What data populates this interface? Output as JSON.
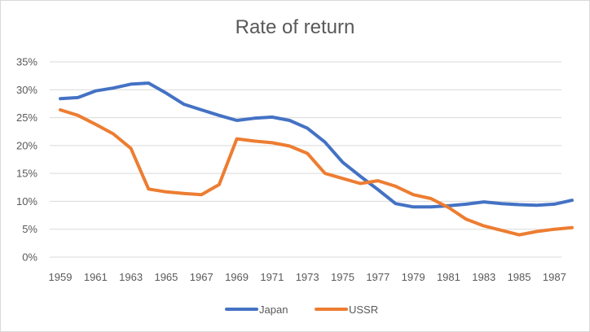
{
  "chart_data": {
    "type": "line",
    "title": "Rate of return",
    "xlabel": "",
    "ylabel": "",
    "x": [
      1959,
      1960,
      1961,
      1962,
      1963,
      1964,
      1965,
      1966,
      1967,
      1968,
      1969,
      1970,
      1971,
      1972,
      1973,
      1974,
      1975,
      1976,
      1977,
      1978,
      1979,
      1980,
      1981,
      1982,
      1983,
      1984,
      1985,
      1986,
      1987,
      1988
    ],
    "x_tick_labels": [
      "1959",
      "1961",
      "1963",
      "1965",
      "1967",
      "1969",
      "1971",
      "1973",
      "1975",
      "1977",
      "1979",
      "1981",
      "1983",
      "1985",
      "1987"
    ],
    "ylim": [
      0,
      35
    ],
    "y_ticks": [
      0,
      5,
      10,
      15,
      20,
      25,
      30,
      35
    ],
    "y_tick_labels": [
      "0%",
      "5%",
      "10%",
      "15%",
      "20%",
      "25%",
      "30%",
      "35%"
    ],
    "grid": true,
    "legend_position": "bottom",
    "series": [
      {
        "name": "Japan",
        "color": "#4472c4",
        "values": [
          28.4,
          28.6,
          29.8,
          30.3,
          31.0,
          31.2,
          29.4,
          27.4,
          26.4,
          25.4,
          24.5,
          24.9,
          25.1,
          24.5,
          23.1,
          20.6,
          17.0,
          14.5,
          12.1,
          9.6,
          9.0,
          9.0,
          9.2,
          9.5,
          9.9,
          9.6,
          9.4,
          9.3,
          9.5,
          10.2
        ]
      },
      {
        "name": "USSR",
        "color": "#ed7d31",
        "values": [
          26.4,
          25.4,
          23.8,
          22.1,
          19.5,
          12.2,
          11.7,
          11.4,
          11.2,
          13.0,
          21.2,
          20.8,
          20.5,
          19.9,
          18.6,
          15.0,
          14.1,
          13.2,
          13.7,
          12.7,
          11.2,
          10.5,
          8.9,
          6.8,
          5.6,
          4.8,
          4.0,
          4.6,
          5.0,
          5.3
        ]
      }
    ]
  }
}
